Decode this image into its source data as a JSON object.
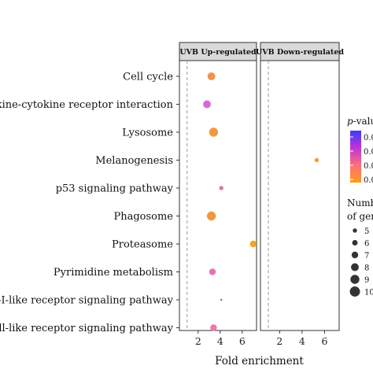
{
  "chart_data": {
    "type": "scatter",
    "facets": [
      "UVB Up-regulated",
      "UVB Down-regulated"
    ],
    "categories": [
      "Cell cycle",
      "Cytokine-cytokine receptor interaction",
      "Lysosome",
      "Melanogenesis",
      "p53 signaling pathway",
      "Phagosome",
      "Proteasome",
      "Pyrimidine metabolism",
      "RIG-I-like receptor signaling pathway",
      "Toll-like receptor signaling pathway"
    ],
    "category_labels_visible": [
      "Cell cycle",
      "ytokine-cytokine receptor interaction",
      "Lysosome",
      "Melanogenesis",
      "p53 signaling pathway",
      "Phagosome",
      "Proteasome",
      "Pyrimidine metabolism",
      "IG-I-like receptor signaling pathway",
      "Toll-like receptor signaling pathway"
    ],
    "xlabel": "Fold enrichment",
    "xlim": [
      0.3,
      7.3
    ],
    "xticks": [
      2,
      4,
      6
    ],
    "reference_line_x": 1,
    "points": [
      {
        "facet": "UVB Up-regulated",
        "category": "Cell cycle",
        "x": 3.2,
        "count": 8,
        "color": "#f0934f"
      },
      {
        "facet": "UVB Up-regulated",
        "category": "Cytokine-cytokine receptor interaction",
        "x": 2.8,
        "count": 8,
        "color": "#d86ad6"
      },
      {
        "facet": "UVB Up-regulated",
        "category": "Lysosome",
        "x": 3.4,
        "count": 9,
        "color": "#f19840"
      },
      {
        "facet": "UVB Down-regulated",
        "category": "Melanogenesis",
        "x": 5.3,
        "count": 5,
        "color": "#f59a35"
      },
      {
        "facet": "UVB Up-regulated",
        "category": "p53 signaling pathway",
        "x": 4.1,
        "count": 5,
        "color": "#e2749e"
      },
      {
        "facet": "UVB Up-regulated",
        "category": "Phagosome",
        "x": 3.2,
        "count": 9,
        "color": "#f29840"
      },
      {
        "facet": "UVB Up-regulated",
        "category": "Proteasome",
        "x": 7.0,
        "count": 7,
        "color": "#f7a21e"
      },
      {
        "facet": "UVB Up-regulated",
        "category": "Pyrimidine metabolism",
        "x": 3.3,
        "count": 7,
        "color": "#e673b8"
      },
      {
        "facet": "UVB Up-regulated",
        "category": "RIG-I-like receptor signaling pathway",
        "x": 4.1,
        "count": 3,
        "color": "#a24ad8"
      },
      {
        "facet": "UVB Up-regulated",
        "category": "Toll-like receptor signaling pathway",
        "x": 3.4,
        "count": 7,
        "color": "#e879ab"
      }
    ],
    "legend": {
      "color_title_prefix": "p",
      "color_title_suffix": "-value",
      "color_ticks": [
        "0.0",
        "0.0",
        "0.0",
        "0.0"
      ],
      "color_gradient": [
        "#3b3cff",
        "#c233d8",
        "#ff6f7a",
        "#ff9b1a"
      ],
      "size_title_line1": "Numb",
      "size_title_line2": "of gen",
      "size_entries": [
        {
          "label": "5",
          "count": 5
        },
        {
          "label": "6",
          "count": 6
        },
        {
          "label": "7",
          "count": 7
        },
        {
          "label": "8",
          "count": 8
        },
        {
          "label": "9",
          "count": 9
        },
        {
          "label": "10",
          "count": 10
        }
      ]
    },
    "legend_placement": "right",
    "grid": false
  }
}
